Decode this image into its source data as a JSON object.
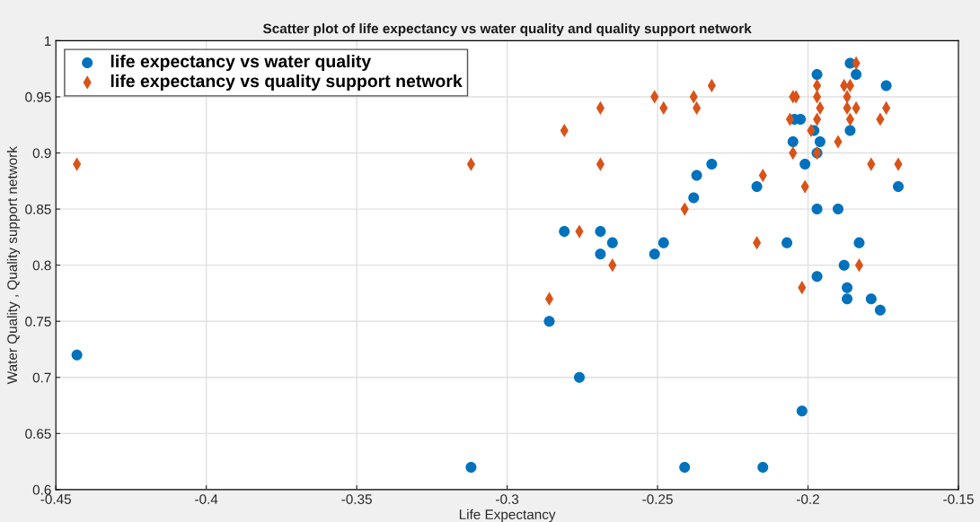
{
  "chart_data": {
    "type": "scatter",
    "title": "Scatter plot of life expectancy vs water quality and quality support network",
    "xlabel": "Life Expectancy",
    "ylabel": "Water Quality , Quality support network",
    "xlim": [
      -0.45,
      -0.15
    ],
    "xticks": [
      -0.45,
      -0.4,
      -0.35,
      -0.3,
      -0.25,
      -0.2,
      -0.15
    ],
    "ylim": [
      0.6,
      1
    ],
    "yticks": [
      0.6,
      0.65,
      0.7,
      0.75,
      0.8,
      0.85,
      0.9,
      0.95,
      1
    ],
    "grid": true,
    "legend": "top left",
    "series": [
      {
        "name": "life expectancy vs water quality",
        "color": "#0072bd",
        "marker": "circle",
        "x": [
          -0.443,
          -0.312,
          -0.286,
          -0.281,
          -0.276,
          -0.269,
          -0.269,
          -0.265,
          -0.251,
          -0.248,
          -0.241,
          -0.238,
          -0.237,
          -0.232,
          -0.217,
          -0.215,
          -0.207,
          -0.205,
          -0.2045,
          -0.2025,
          -0.202,
          -0.201,
          -0.198,
          -0.197,
          -0.197,
          -0.197,
          -0.197,
          -0.196,
          -0.19,
          -0.188,
          -0.187,
          -0.187,
          -0.186,
          -0.186,
          -0.184,
          -0.183,
          -0.179,
          -0.176,
          -0.174,
          -0.17
        ],
        "values": [
          0.72,
          0.62,
          0.75,
          0.83,
          0.7,
          0.83,
          0.81,
          0.82,
          0.81,
          0.82,
          0.62,
          0.86,
          0.88,
          0.89,
          0.87,
          0.62,
          0.82,
          0.91,
          0.93,
          0.93,
          0.67,
          0.89,
          0.92,
          0.97,
          0.9,
          0.85,
          0.79,
          0.91,
          0.85,
          0.8,
          0.78,
          0.77,
          0.92,
          0.98,
          0.97,
          0.82,
          0.77,
          0.76,
          0.96,
          0.87
        ]
      },
      {
        "name": "life expectancy vs quality support network",
        "color": "#d95319",
        "marker": "diamond",
        "x": [
          -0.443,
          -0.312,
          -0.286,
          -0.281,
          -0.276,
          -0.269,
          -0.269,
          -0.265,
          -0.251,
          -0.248,
          -0.241,
          -0.238,
          -0.237,
          -0.232,
          -0.217,
          -0.215,
          -0.206,
          -0.205,
          -0.205,
          -0.204,
          -0.202,
          -0.201,
          -0.199,
          -0.197,
          -0.197,
          -0.197,
          -0.197,
          -0.196,
          -0.19,
          -0.188,
          -0.187,
          -0.187,
          -0.186,
          -0.186,
          -0.184,
          -0.184,
          -0.183,
          -0.179,
          -0.176,
          -0.174,
          -0.17
        ],
        "values": [
          0.89,
          0.89,
          0.77,
          0.92,
          0.83,
          0.94,
          0.89,
          0.8,
          0.95,
          0.94,
          0.85,
          0.95,
          0.94,
          0.96,
          0.82,
          0.88,
          0.93,
          0.9,
          0.95,
          0.95,
          0.78,
          0.87,
          0.92,
          0.9,
          0.96,
          0.95,
          0.93,
          0.94,
          0.91,
          0.96,
          0.95,
          0.94,
          0.93,
          0.96,
          0.98,
          0.94,
          0.8,
          0.89,
          0.93,
          0.94,
          0.89
        ]
      }
    ]
  }
}
